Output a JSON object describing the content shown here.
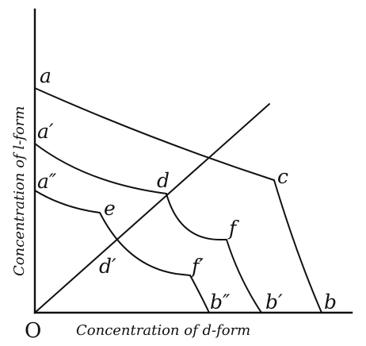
{
  "axes": {
    "x_label": "Concentration of d-form",
    "y_label": "Concentration of l-form",
    "origin_label": "O"
  },
  "points": {
    "a": "a",
    "a1": "a′",
    "a2": "a″",
    "b": "b",
    "b1": "b′",
    "b2": "b″",
    "c": "c",
    "d": "d",
    "d1": "d′",
    "e": "e",
    "f": "f",
    "f1": "f′"
  }
}
